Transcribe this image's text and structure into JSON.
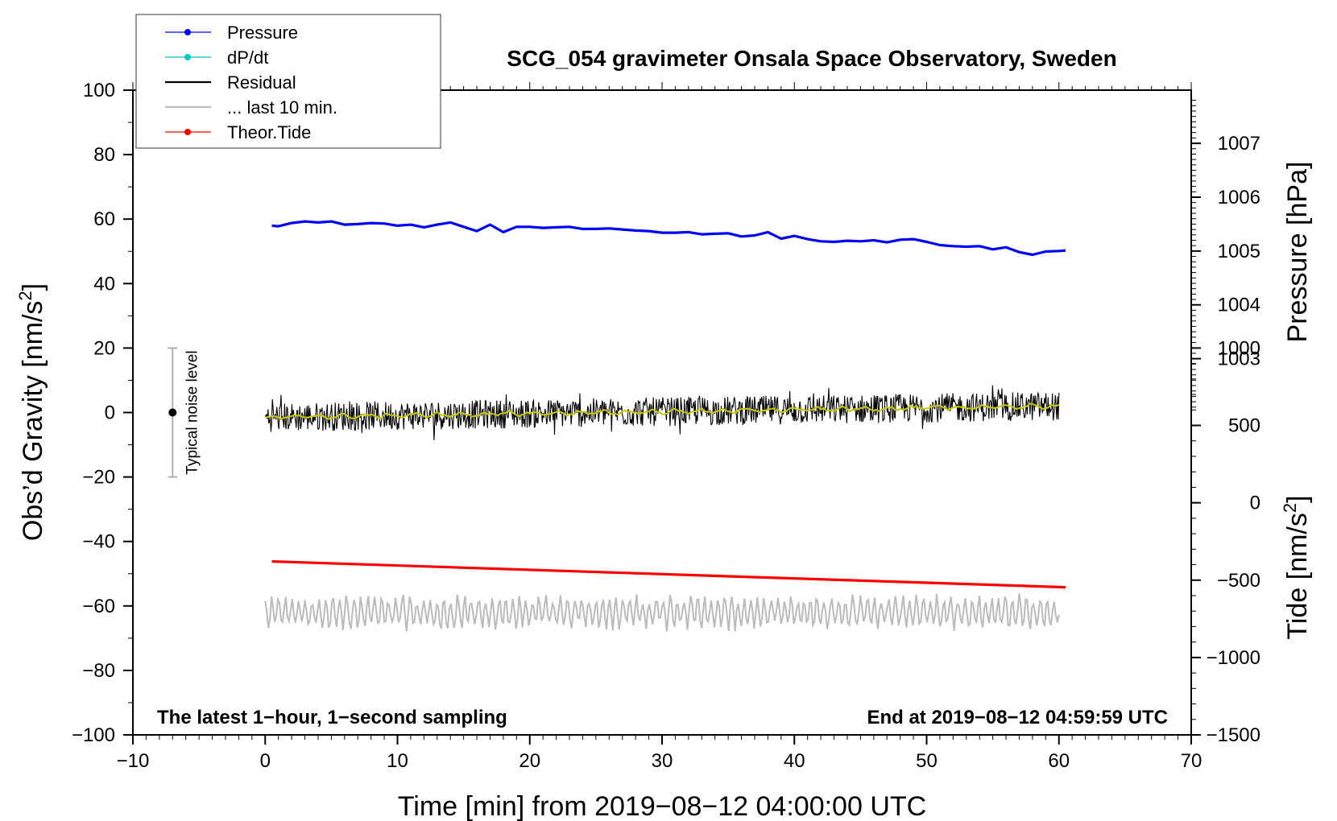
{
  "chart_data": {
    "type": "line",
    "title": "SCG_054 gravimeter Onsala Space Observatory, Sweden",
    "xlabel": "Time [min] from 2019−08−12 04:00:00 UTC",
    "ylabel_left": "Obs’d Gravity [nm/s",
    "ylabel_left_sup": "2",
    "ylabel_left_close": "]",
    "ylabel_right_pressure": "Pressure [hPa]",
    "ylabel_right_tide": "Tide [nm/s",
    "ylabel_right_tide_sup": "2",
    "ylabel_right_tide_close": "]",
    "xlim": [
      -10,
      70
    ],
    "ylim_left": [
      -100,
      100
    ],
    "x_ticks": [
      -10,
      0,
      10,
      20,
      30,
      40,
      50,
      60,
      70
    ],
    "x_tick_labels": [
      "−10",
      "0",
      "10",
      "20",
      "30",
      "40",
      "50",
      "60",
      "70"
    ],
    "y_left_ticks": [
      100,
      80,
      60,
      40,
      20,
      0,
      -20,
      -40,
      -60,
      -80,
      -100
    ],
    "y_left_tick_labels": [
      "100",
      "80",
      "60",
      "40",
      "20",
      "0",
      "−20",
      "−40",
      "−60",
      "−80",
      "−100"
    ],
    "pressure_ticks": [
      1007,
      1006,
      1005,
      1004,
      1003
    ],
    "pressure_tick_labels": [
      "1007",
      "1006",
      "1005",
      "1004",
      "1003"
    ],
    "pressure_scale": {
      "value_at_gravity_0": 1002,
      "units_per_hpa": 16.7
    },
    "tide_ticks": [
      1000,
      500,
      0,
      -500,
      -1000,
      -1500
    ],
    "tide_tick_labels": [
      "1000",
      "500",
      "0",
      "−500",
      "−1000",
      "−1500"
    ],
    "tide_scale": {
      "value_at_gravity_minus100": -1500,
      "value_at_gravity_20": 1000
    },
    "legend": {
      "position": "top-left",
      "entries": [
        {
          "label": "Pressure",
          "color": "#0000ff",
          "marker": true
        },
        {
          "label": "dP/dt",
          "color": "#00c8c8",
          "marker": true
        },
        {
          "label": "Residual",
          "color": "#000000",
          "marker": false
        },
        {
          "label": "... last 10 min.",
          "color": "#bbbbbb",
          "marker": false
        },
        {
          "label": "Theor.Tide",
          "color": "#ff0000",
          "marker": true
        }
      ]
    },
    "noise_indicator": {
      "label": "Typical noise level",
      "x": -7,
      "center": 0,
      "low": -20,
      "high": 20
    },
    "footnote_left": "The latest 1−hour, 1−second sampling",
    "footnote_right": "End at 2019−08−12 04:59:59 UTC",
    "series": [
      {
        "name": "Pressure",
        "color": "#0000ff",
        "axis": "pressure",
        "x": [
          0.5,
          1,
          2,
          3,
          4,
          5,
          6,
          7,
          8,
          9,
          10,
          11,
          12,
          13,
          14,
          15,
          16,
          17,
          18,
          19,
          20,
          21,
          22,
          23,
          24,
          25,
          26,
          27,
          28,
          29,
          30,
          31,
          32,
          33,
          34,
          35,
          36,
          37,
          38,
          39,
          40,
          41,
          42,
          43,
          44,
          45,
          46,
          47,
          48,
          49,
          50,
          51,
          52,
          53,
          54,
          55,
          56,
          57,
          58,
          59,
          60,
          60.5
        ],
        "values": [
          1005.47,
          1005.46,
          1005.52,
          1005.55,
          1005.53,
          1005.55,
          1005.49,
          1005.5,
          1005.52,
          1005.51,
          1005.47,
          1005.49,
          1005.44,
          1005.49,
          1005.53,
          1005.45,
          1005.37,
          1005.49,
          1005.35,
          1005.45,
          1005.45,
          1005.43,
          1005.44,
          1005.45,
          1005.41,
          1005.41,
          1005.42,
          1005.4,
          1005.38,
          1005.37,
          1005.34,
          1005.34,
          1005.35,
          1005.31,
          1005.32,
          1005.33,
          1005.27,
          1005.29,
          1005.35,
          1005.23,
          1005.28,
          1005.22,
          1005.18,
          1005.17,
          1005.19,
          1005.18,
          1005.2,
          1005.16,
          1005.21,
          1005.22,
          1005.17,
          1005.11,
          1005.09,
          1005.08,
          1005.09,
          1005.03,
          1005.07,
          1004.98,
          1004.93,
          1004.99,
          1005.0,
          1005.01
        ]
      },
      {
        "name": "Residual",
        "color": "#000000",
        "axis": "gravity",
        "x_range": [
          0,
          60
        ],
        "trend": {
          "start": -1.5,
          "end": 2.0
        },
        "noise_amplitude": 4.5
      },
      {
        "name": "Residual smoothed",
        "color": "#c8c800",
        "axis": "gravity",
        "x_range": [
          0,
          60
        ],
        "trend": {
          "start": -1.5,
          "end": 2.0
        }
      },
      {
        "name": "... last 10 min.",
        "color": "#bbbbbb",
        "axis": "gravity",
        "x_range": [
          0,
          60
        ],
        "center": -62,
        "amplitude": 4
      },
      {
        "name": "Theor.Tide",
        "color": "#ff0000",
        "axis": "gravity",
        "x": [
          0.5,
          60.5
        ],
        "values": [
          -46.2,
          -54.2
        ]
      }
    ]
  }
}
